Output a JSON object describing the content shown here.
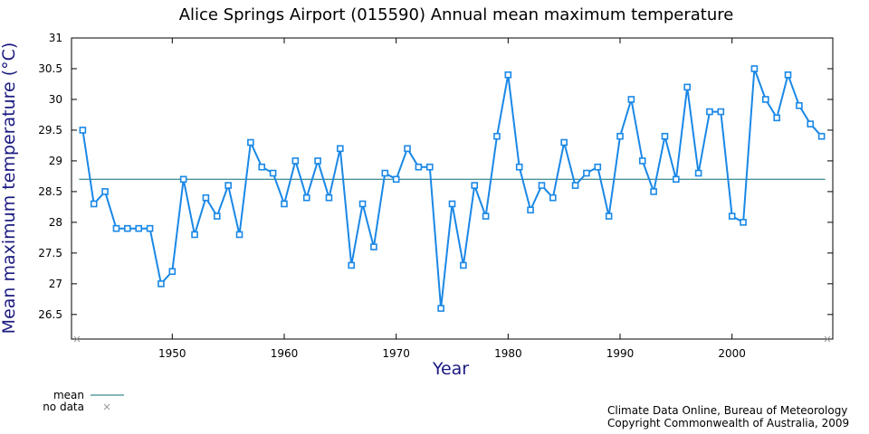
{
  "chart_data": {
    "type": "line",
    "title": "Alice Springs Airport (015590) Annual mean maximum temperature",
    "xlabel": "Year",
    "ylabel": "Mean maximum temperature (°C)",
    "xlim": [
      1941,
      2009
    ],
    "ylim": [
      26.1,
      31
    ],
    "xticks": [
      1950,
      1960,
      1970,
      1980,
      1990,
      2000
    ],
    "yticks": [
      26.5,
      27,
      27.5,
      28,
      28.5,
      29,
      29.5,
      30,
      30.5,
      31
    ],
    "ytick_labels": [
      "26.5",
      "27",
      "27.5",
      "28",
      "28.5",
      "29",
      "29.5",
      "30",
      "30.5",
      "31"
    ],
    "mean": 28.7,
    "no_data_years": [
      1941,
      2009
    ],
    "series": [
      {
        "color": "#1a88e6",
        "x": [
          1942,
          1943,
          1944,
          1945,
          1946,
          1947,
          1948,
          1949,
          1950,
          1951,
          1952,
          1953,
          1954,
          1955,
          1956,
          1957,
          1958,
          1959,
          1960,
          1961,
          1962,
          1963,
          1964,
          1965,
          1966,
          1967,
          1968,
          1969,
          1970,
          1971,
          1972,
          1973,
          1974,
          1975,
          1976,
          1977,
          1978,
          1979,
          1980,
          1981,
          1982,
          1983,
          1984,
          1985,
          1986,
          1987,
          1988,
          1989,
          1990,
          1991,
          1992,
          1993,
          1994,
          1995,
          1996,
          1997,
          1998,
          1999,
          2000,
          2001,
          2002,
          2003,
          2004,
          2005,
          2006,
          2007,
          2008
        ],
        "y": [
          29.5,
          28.3,
          28.5,
          27.9,
          27.9,
          27.9,
          27.9,
          27.0,
          27.2,
          28.7,
          27.8,
          28.4,
          28.1,
          28.6,
          27.8,
          29.3,
          28.9,
          28.8,
          28.3,
          29.0,
          28.4,
          29.0,
          28.4,
          29.2,
          27.3,
          28.3,
          27.6,
          28.8,
          28.7,
          29.2,
          28.9,
          28.9,
          26.6,
          28.3,
          27.3,
          28.6,
          28.1,
          29.4,
          30.4,
          28.9,
          28.2,
          28.6,
          28.4,
          29.3,
          28.6,
          28.8,
          28.9,
          28.1,
          29.4,
          30.0,
          29.0,
          28.5,
          29.4,
          28.7,
          30.2,
          28.8,
          29.8,
          29.8,
          28.1,
          28.0,
          30.5,
          30.0,
          29.7,
          30.4,
          29.9,
          29.6,
          29.4
        ]
      }
    ],
    "mean_color": "#0b6b73",
    "nodata_color": "#999999",
    "legend": {
      "mean_label": "mean",
      "nodata_label": "no data",
      "placement": "bottom-left"
    }
  },
  "credits": {
    "line1": "Climate Data Online, Bureau of Meteorology",
    "line2": "Copyright Commonwealth of Australia, 2009"
  }
}
